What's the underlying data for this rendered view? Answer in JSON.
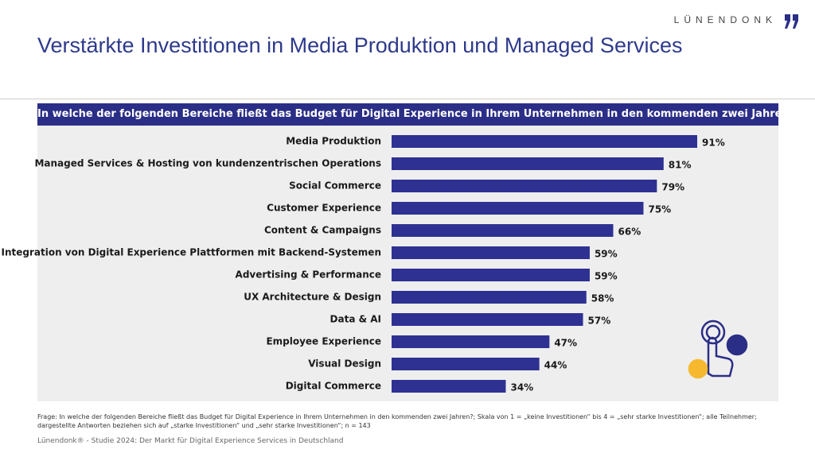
{
  "logo": "LÜNENDONK",
  "footnote": "Frage: In welche der folgenden Bereiche fließt das Budget für Digital Experience in Ihrem Unternehmen in den kommenden zwei Jahren?; Skala von 1 = „keine Investitionen“ bis 4 = „sehr starke Investitionen“; alle Teilnehmer; dargestellte Antworten beziehen sich auf „starke Investitionen“ und „sehr starke Investitionen“; n = 143",
  "source": "Lünendonk® - Studie 2024: Der Markt für Digital Experience Services in Deutschland",
  "chart_data": {
    "type": "bar",
    "orientation": "horizontal",
    "title": "Verstärkte Investitionen in Media Produktion und Managed Services",
    "subtitle": "In welche der folgenden Bereiche fließt das Budget für Digital Experience in Ihrem Unternehmen in den kommenden zwei Jahren?",
    "categories": [
      "Media Produktion",
      "Managed Services & Hosting von kundenzentrischen Operations",
      "Social Commerce",
      "Customer Experience",
      "Content & Campaigns",
      "Integration von Digital Experience Plattformen mit Backend-Systemen",
      "Advertising & Performance",
      "UX Architecture & Design",
      "Data & AI",
      "Employee Experience",
      "Visual Design",
      "Digital Commerce"
    ],
    "values": [
      91,
      81,
      79,
      75,
      66,
      59,
      59,
      58,
      57,
      47,
      44,
      34
    ],
    "value_labels": [
      "91%",
      "81%",
      "79%",
      "75%",
      "66%",
      "59%",
      "59%",
      "58%",
      "57%",
      "47%",
      "44%",
      "34%"
    ],
    "color": "#2e3192"
  }
}
